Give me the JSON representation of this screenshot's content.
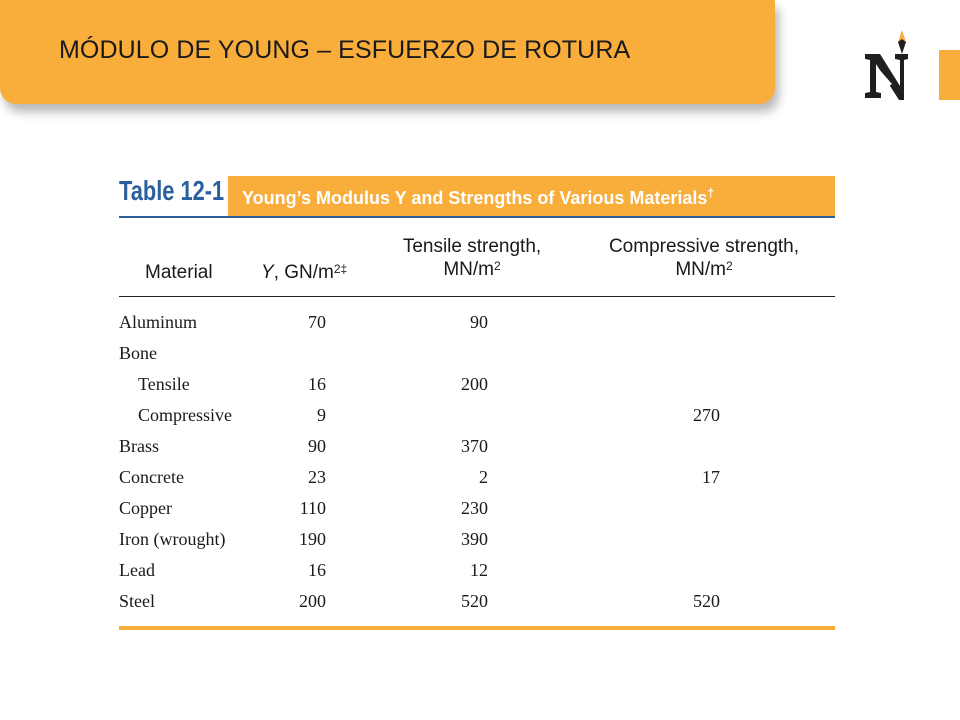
{
  "slide": {
    "title": "MÓDULO DE YOUNG – ESFUERZO DE ROTURA",
    "accent_color": "#f9ad3a",
    "logo_icon": "n-compass-logo-icon"
  },
  "table": {
    "number": "Table 12-1",
    "caption": "Young’s Modulus Y and Strengths of Various Materials",
    "caption_mark": "†",
    "header_color": "#2b5f9e",
    "columns": {
      "material": "Material",
      "young_prefix": "Y",
      "young_unit": ", GN/m",
      "young_sup": "2‡",
      "tensile_line1": "Tensile strength,",
      "tensile_line2": "MN/m",
      "tensile_sup": "2",
      "compressive_line1": "Compressive strength,",
      "compressive_line2": "MN/m",
      "compressive_sup": "2"
    },
    "rows": [
      {
        "material": "Aluminum",
        "indent": false,
        "young": "70",
        "tensile": "90",
        "compressive": ""
      },
      {
        "material": "Bone",
        "indent": false,
        "young": "",
        "tensile": "",
        "compressive": ""
      },
      {
        "material": "Tensile",
        "indent": true,
        "young": "16",
        "tensile": "200",
        "compressive": ""
      },
      {
        "material": "Compressive",
        "indent": true,
        "young": "9",
        "tensile": "",
        "compressive": "270"
      },
      {
        "material": "Brass",
        "indent": false,
        "young": "90",
        "tensile": "370",
        "compressive": ""
      },
      {
        "material": "Concrete",
        "indent": false,
        "young": "23",
        "tensile": "2",
        "compressive": "17"
      },
      {
        "material": "Copper",
        "indent": false,
        "young": "110",
        "tensile": "230",
        "compressive": ""
      },
      {
        "material": "Iron (wrought)",
        "indent": false,
        "young": "190",
        "tensile": "390",
        "compressive": ""
      },
      {
        "material": "Lead",
        "indent": false,
        "young": "16",
        "tensile": "12",
        "compressive": ""
      },
      {
        "material": "Steel",
        "indent": false,
        "young": "200",
        "tensile": "520",
        "compressive": "520"
      }
    ]
  }
}
